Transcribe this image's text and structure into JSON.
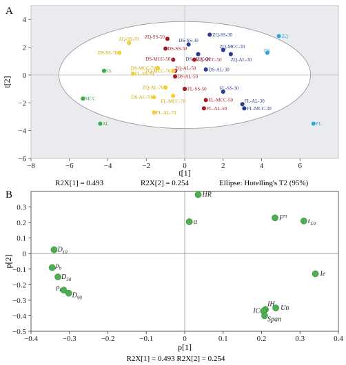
{
  "chart_data": [
    {
      "panel": "A",
      "type": "scatter",
      "xlabel": "t[1]",
      "ylabel": "t[2]",
      "xlim": [
        -8,
        8
      ],
      "ylim": [
        -6,
        5
      ],
      "xticks": [
        "−8",
        "−6",
        "−4",
        "−2",
        "0",
        "2",
        "4",
        "6"
      ],
      "yticks": [
        "4",
        "2",
        "0",
        "−2",
        "−4",
        "−6"
      ],
      "grid": false,
      "ellipse": {
        "center": [
          0,
          0
        ],
        "rx": 6.55,
        "ry": 3.85
      },
      "footer": {
        "r2x1": "R2X[1] = 0.493",
        "r2x2": "R2X[2] = 0.254",
        "ellipse_label": "Ellipse: Hotelling's T2 (95%)"
      },
      "colors": {
        "green": "#3faa4a",
        "yellow": "#f2d036",
        "red": "#a51d24",
        "navy": "#2c3d8f",
        "cyan": "#36a4d9"
      },
      "points": [
        {
          "label": "ZQ",
          "x": 4.9,
          "y": 2.8,
          "color": "#36a4d9",
          "labelColor": "#36a4d9",
          "dx": 4,
          "anchor": "start"
        },
        {
          "label": "DS",
          "x": 4.3,
          "y": 1.6,
          "color": "#36a4d9",
          "labelColor": "#36a4d9",
          "dx": -5,
          "dy": -3,
          "anchor": "start"
        },
        {
          "label": "FL",
          "x": 6.7,
          "y": -3.5,
          "color": "#36a4d9",
          "labelColor": "#36a4d9",
          "dx": 4,
          "anchor": "start"
        },
        {
          "label": "ZQ-SS-30",
          "x": 1.3,
          "y": 2.9,
          "color": "#2c3d8f",
          "labelColor": "#2c3d8f",
          "dx": 4,
          "anchor": "start"
        },
        {
          "label": "DS-SS-30",
          "x": 0.2,
          "y": 2.2,
          "color": "#2c3d8f",
          "labelColor": "#2c3d8f",
          "dx": 0,
          "dy": -6,
          "anchor": "middle"
        },
        {
          "label": "ZQ-MCC-30",
          "x": 2.0,
          "y": 1.8,
          "color": "#2c3d8f",
          "labelColor": "#2c3d8f",
          "dx": -5,
          "dy": -5,
          "anchor": "start"
        },
        {
          "label": "DS-MCC-30",
          "x": 0.7,
          "y": 1.5,
          "color": "#2c3d8f",
          "labelColor": "#2c3d8f",
          "dx": 0,
          "dy": 7,
          "anchor": "middle"
        },
        {
          "label": "ZQ-AL-30",
          "x": 2.4,
          "y": 1.5,
          "color": "#2c3d8f",
          "labelColor": "#2c3d8f",
          "dx": 0,
          "dy": 8,
          "anchor": "start"
        },
        {
          "label": "DS-AL-30",
          "x": 1.1,
          "y": 0.4,
          "color": "#2c3d8f",
          "labelColor": "#2c3d8f",
          "dx": 4,
          "anchor": "start"
        },
        {
          "label": "FL-SS-30",
          "x": 2.0,
          "y": -1.2,
          "color": "#2c3d8f",
          "labelColor": "#2c3d8f",
          "dx": -5,
          "dy": -5,
          "anchor": "start"
        },
        {
          "label": "FL-AL-30",
          "x": 3.0,
          "y": -2.1,
          "color": "#2c3d8f",
          "labelColor": "#2c3d8f",
          "dx": 3,
          "dy": -5,
          "anchor": "start"
        },
        {
          "label": "FL-MCC-30",
          "x": 3.1,
          "y": -2.4,
          "color": "#2c3d8f",
          "labelColor": "#2c3d8f",
          "dx": 4,
          "anchor": "start"
        },
        {
          "label": "ZQ-SS-50",
          "x": -0.9,
          "y": 2.6,
          "color": "#a51d24",
          "labelColor": "#a51d24",
          "dx": -4,
          "dy": -3,
          "anchor": "end"
        },
        {
          "label": "DS-SS-50",
          "x": -1.0,
          "y": 1.9,
          "color": "#a51d24",
          "labelColor": "#a51d24",
          "dx": 3,
          "anchor": "start"
        },
        {
          "label": "DS-MCC-50",
          "x": -0.6,
          "y": 1.1,
          "color": "#a51d24",
          "labelColor": "#a51d24",
          "dx": -4,
          "dy": -1,
          "anchor": "end"
        },
        {
          "label": "ZQ-MCC-50",
          "x": 0.5,
          "y": 1.1,
          "color": "#a51d24",
          "labelColor": "#a51d24",
          "dx": 3,
          "anchor": "start"
        },
        {
          "label": "ZQ-AL-50",
          "x": -0.5,
          "y": 0.3,
          "color": "#a51d24",
          "labelColor": "#a51d24",
          "dx": 0,
          "dy": -4,
          "anchor": "start"
        },
        {
          "label": "DS-AL-50",
          "x": -0.5,
          "y": -0.1,
          "color": "#a51d24",
          "labelColor": "#a51d24",
          "dx": 3,
          "anchor": "start"
        },
        {
          "label": "FL-SS-50",
          "x": 0.0,
          "y": -1.0,
          "color": "#a51d24",
          "labelColor": "#a51d24",
          "dx": 4,
          "anchor": "start"
        },
        {
          "label": "FL-MCC-50",
          "x": 1.1,
          "y": -1.8,
          "color": "#a51d24",
          "labelColor": "#a51d24",
          "dx": 4,
          "anchor": "start"
        },
        {
          "label": "FL-AL-50",
          "x": 1.0,
          "y": -2.4,
          "color": "#a51d24",
          "labelColor": "#a51d24",
          "dx": 4,
          "anchor": "start"
        },
        {
          "label": "ZQ-SS-70",
          "x": -2.9,
          "y": 2.3,
          "color": "#f2d036",
          "labelColor": "#c9a600",
          "dx": 0,
          "dy": -6,
          "anchor": "middle"
        },
        {
          "label": "DS-SS-70",
          "x": -3.4,
          "y": 1.6,
          "color": "#f2d036",
          "labelColor": "#c9a600",
          "dx": -3,
          "anchor": "end"
        },
        {
          "label": "DS-MCC-70",
          "x": -1.4,
          "y": 0.5,
          "color": "#f2d036",
          "labelColor": "#c9a600",
          "dx": -3,
          "anchor": "end"
        },
        {
          "label": "ZQ-MCC-70",
          "x": -0.6,
          "y": 0.3,
          "color": "#f2d036",
          "labelColor": "#c9a600",
          "dx": -4,
          "anchor": "end"
        },
        {
          "label": "FL-SS-70",
          "x": -2.7,
          "y": 0.1,
          "color": "#f2d036",
          "labelColor": "#c9a600",
          "dx": 3,
          "anchor": "start"
        },
        {
          "label": "ZQ-AL-70",
          "x": -1.0,
          "y": -0.9,
          "color": "#f2d036",
          "labelColor": "#c9a600",
          "dx": -3,
          "anchor": "end"
        },
        {
          "label": "DS-AL-70",
          "x": -1.6,
          "y": -1.6,
          "color": "#f2d036",
          "labelColor": "#c9a600",
          "dx": -3,
          "anchor": "end"
        },
        {
          "label": "FL-MCC-70",
          "x": -0.6,
          "y": -1.5,
          "color": "#f2d036",
          "labelColor": "#c9a600",
          "dx": 0,
          "dy": 8,
          "anchor": "middle"
        },
        {
          "label": "FL-AL-70",
          "x": -1.6,
          "y": -2.7,
          "color": "#f2d036",
          "labelColor": "#c9a600",
          "dx": 3,
          "anchor": "start"
        },
        {
          "label": "SS",
          "x": -4.2,
          "y": 0.3,
          "color": "#3faa4a",
          "labelColor": "#3faa4a",
          "dx": 3,
          "anchor": "start"
        },
        {
          "label": "MCC",
          "x": -5.3,
          "y": -1.7,
          "color": "#3faa4a",
          "labelColor": "#3faa4a",
          "dx": 3,
          "anchor": "start"
        },
        {
          "label": "AL",
          "x": -4.4,
          "y": -3.5,
          "color": "#3faa4a",
          "labelColor": "#3faa4a",
          "dx": 3,
          "anchor": "start"
        }
      ]
    },
    {
      "panel": "B",
      "type": "scatter",
      "xlabel": "p[1]",
      "ylabel": "p[2]",
      "xlim": [
        -0.4,
        0.4
      ],
      "ylim": [
        -0.5,
        0.4
      ],
      "xticks": [
        "−0.4",
        "−0.3",
        "−0.2",
        "−0.1",
        "0",
        "0.1",
        "0.2",
        "0.3",
        "0.4"
      ],
      "yticks": [
        "0.3",
        "0.2",
        "0.1",
        "0",
        "−0.1",
        "−0.2",
        "−0.3",
        "−0.4",
        "−0.5"
      ],
      "grid": false,
      "footer": "R2X[1] = 0.493 R2X[2] = 0.254",
      "color": "#4caf50",
      "points": [
        {
          "label": "HR",
          "x": 0.035,
          "y": 0.38,
          "dx": 6,
          "dy": 3,
          "anchor": "start"
        },
        {
          "label": "α",
          "x": 0.012,
          "y": 0.205,
          "dx": 6,
          "dy": 3,
          "anchor": "start"
        },
        {
          "label": "F",
          "sup": "m",
          "x": 0.235,
          "y": 0.23,
          "dx": 6,
          "dy": 3,
          "anchor": "start"
        },
        {
          "label": "t",
          "sub": "1/2",
          "x": 0.31,
          "y": 0.21,
          "dx": 6,
          "dy": 3,
          "anchor": "start"
        },
        {
          "label": "Ie",
          "x": 0.34,
          "y": -0.13,
          "dx": 7,
          "dy": 3,
          "anchor": "start"
        },
        {
          "label": "D",
          "sub": "10",
          "x": -0.34,
          "y": 0.025,
          "dx": 5,
          "dy": 3,
          "anchor": "start"
        },
        {
          "label": "ρ",
          "sub": "b",
          "x": -0.345,
          "y": -0.09,
          "dx": 5,
          "dy": 0,
          "anchor": "start"
        },
        {
          "label": "D",
          "sub": "50",
          "x": -0.33,
          "y": -0.15,
          "dx": 5,
          "dy": 3,
          "anchor": "start"
        },
        {
          "label": "ρ",
          "sub": "t",
          "x": -0.315,
          "y": -0.235,
          "dx": -4,
          "dy": -1,
          "anchor": "end"
        },
        {
          "label": "D",
          "sub": "90",
          "x": -0.302,
          "y": -0.255,
          "dx": 5,
          "dy": 6,
          "anchor": "start"
        },
        {
          "label": "IH",
          "x": 0.21,
          "y": -0.36,
          "dx": 3,
          "dy": -5,
          "anchor": "start"
        },
        {
          "label": "Un",
          "x": 0.237,
          "y": -0.35,
          "dx": 7,
          "dy": 3,
          "anchor": "start"
        },
        {
          "label": "IC",
          "x": 0.205,
          "y": -0.37,
          "dx": -5,
          "dy": 3,
          "anchor": "end"
        },
        {
          "label": "Span",
          "x": 0.208,
          "y": -0.4,
          "dx": 4,
          "dy": 8,
          "anchor": "start"
        }
      ]
    }
  ],
  "panels": {
    "a": "A",
    "b": "B"
  }
}
